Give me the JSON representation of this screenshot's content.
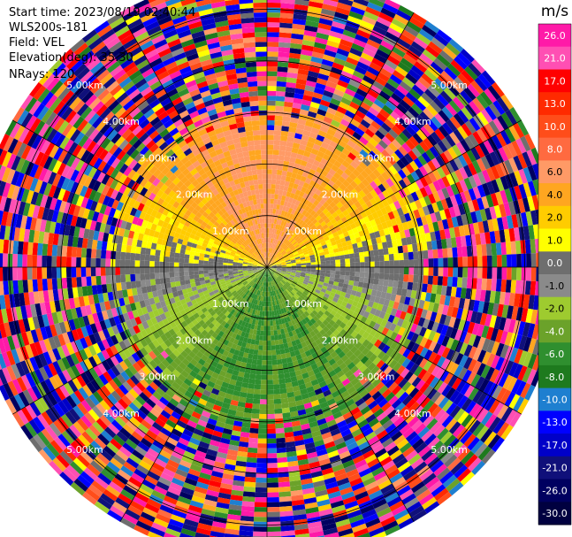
{
  "info": {
    "start_time": "Start time: 2023/08/19 02:40:44",
    "instrument": "WLS200s-181",
    "field": "Field: VEL",
    "elevation": "Elevation(deg): 35.30",
    "nrays": "NRays: 120"
  },
  "chart_data": {
    "type": "heatmap",
    "projection": "polar PPI scan",
    "field": "VEL",
    "units": "m/s",
    "nrays": 120,
    "elevation_deg": 35.3,
    "range_rings_km": [
      1.0,
      2.0,
      3.0,
      4.0,
      5.0
    ],
    "ring_labels": [
      "1.00km",
      "2.00km",
      "3.00km",
      "4.00km",
      "5.00km"
    ],
    "max_range_km": 5.7,
    "colorbar": {
      "title": "m/s",
      "ticks": [
        "26.0",
        "21.0",
        "17.0",
        "13.0",
        "10.0",
        "8.0",
        "6.0",
        "4.0",
        "2.0",
        "1.0",
        "0.0",
        "-1.0",
        "-2.0",
        "-4.0",
        "-6.0",
        "-8.0",
        "-10.0",
        "-13.0",
        "-17.0",
        "-21.0",
        "-26.0",
        "-30.0"
      ],
      "boundaries": [
        30,
        26,
        21,
        17,
        13,
        10,
        8,
        6,
        4,
        2,
        1,
        -1,
        -2,
        -4,
        -6,
        -8,
        -10,
        -13,
        -17,
        -21,
        -26,
        -30
      ],
      "colors": [
        "#ff1aa8",
        "#ff4fb3",
        "#ff0000",
        "#ff2a00",
        "#ff4d1a",
        "#ff6a40",
        "#ff9a66",
        "#ffa620",
        "#ffcc00",
        "#ffff00",
        "#6e6e6e",
        "#8a8a8a",
        "#9ecb2f",
        "#6ba22a",
        "#2f8f2f",
        "#1e7a1e",
        "#1e7fd0",
        "#0000ff",
        "#0000c8",
        "#10107a",
        "#000060",
        "#000040"
      ]
    },
    "pattern_summary": "Near field (< ~3.2 km) shows positive velocities (yellow/orange, up to ~6-8 m/s) toward north, near-zero (gray) along the east-west axis, and negative velocities (green, ~-4 to -6 m/s) toward south; beyond ~3.2 km the returns are noise with random colors."
  }
}
